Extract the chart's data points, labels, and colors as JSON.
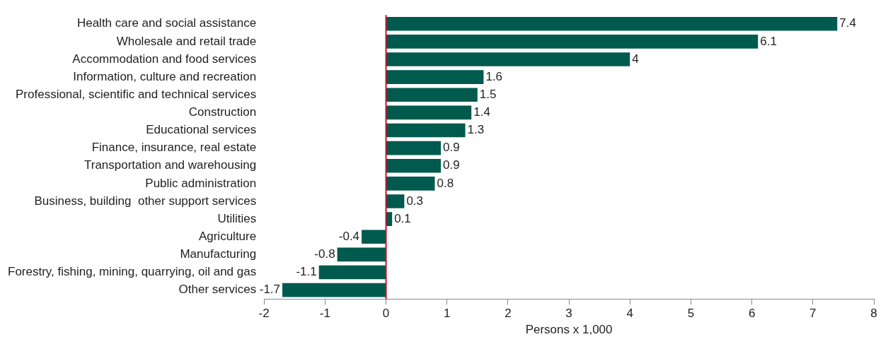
{
  "chart_data": {
    "type": "bar",
    "orientation": "horizontal",
    "xlabel": "Persons x 1,000",
    "categories": [
      "Health care and social assistance",
      "Wholesale and retail trade",
      "Accommodation and food services",
      "Information, culture and recreation",
      "Professional, scientific and technical services",
      "Construction",
      "Educational services",
      "Finance, insurance, real estate",
      "Transportation and warehousing",
      "Public administration",
      "Business, building  other support services",
      "Utilities",
      "Agriculture",
      "Manufacturing",
      "Forestry, fishing, mining, quarrying, oil and gas",
      "Other services"
    ],
    "values": [
      7.4,
      6.1,
      4,
      1.6,
      1.5,
      1.4,
      1.3,
      0.9,
      0.9,
      0.8,
      0.3,
      0.1,
      -0.4,
      -0.8,
      -1.1,
      -1.7
    ],
    "color": "#005a4e",
    "xlim": [
      -2,
      8
    ],
    "xticks": [
      -2,
      -1,
      0,
      1,
      2,
      3,
      4,
      5,
      6,
      7,
      8
    ],
    "ref_lines": [
      {
        "axis": "x",
        "value": 0,
        "color": "#c8102e"
      }
    ],
    "data_labels": true,
    "grid": false,
    "legend": false
  }
}
